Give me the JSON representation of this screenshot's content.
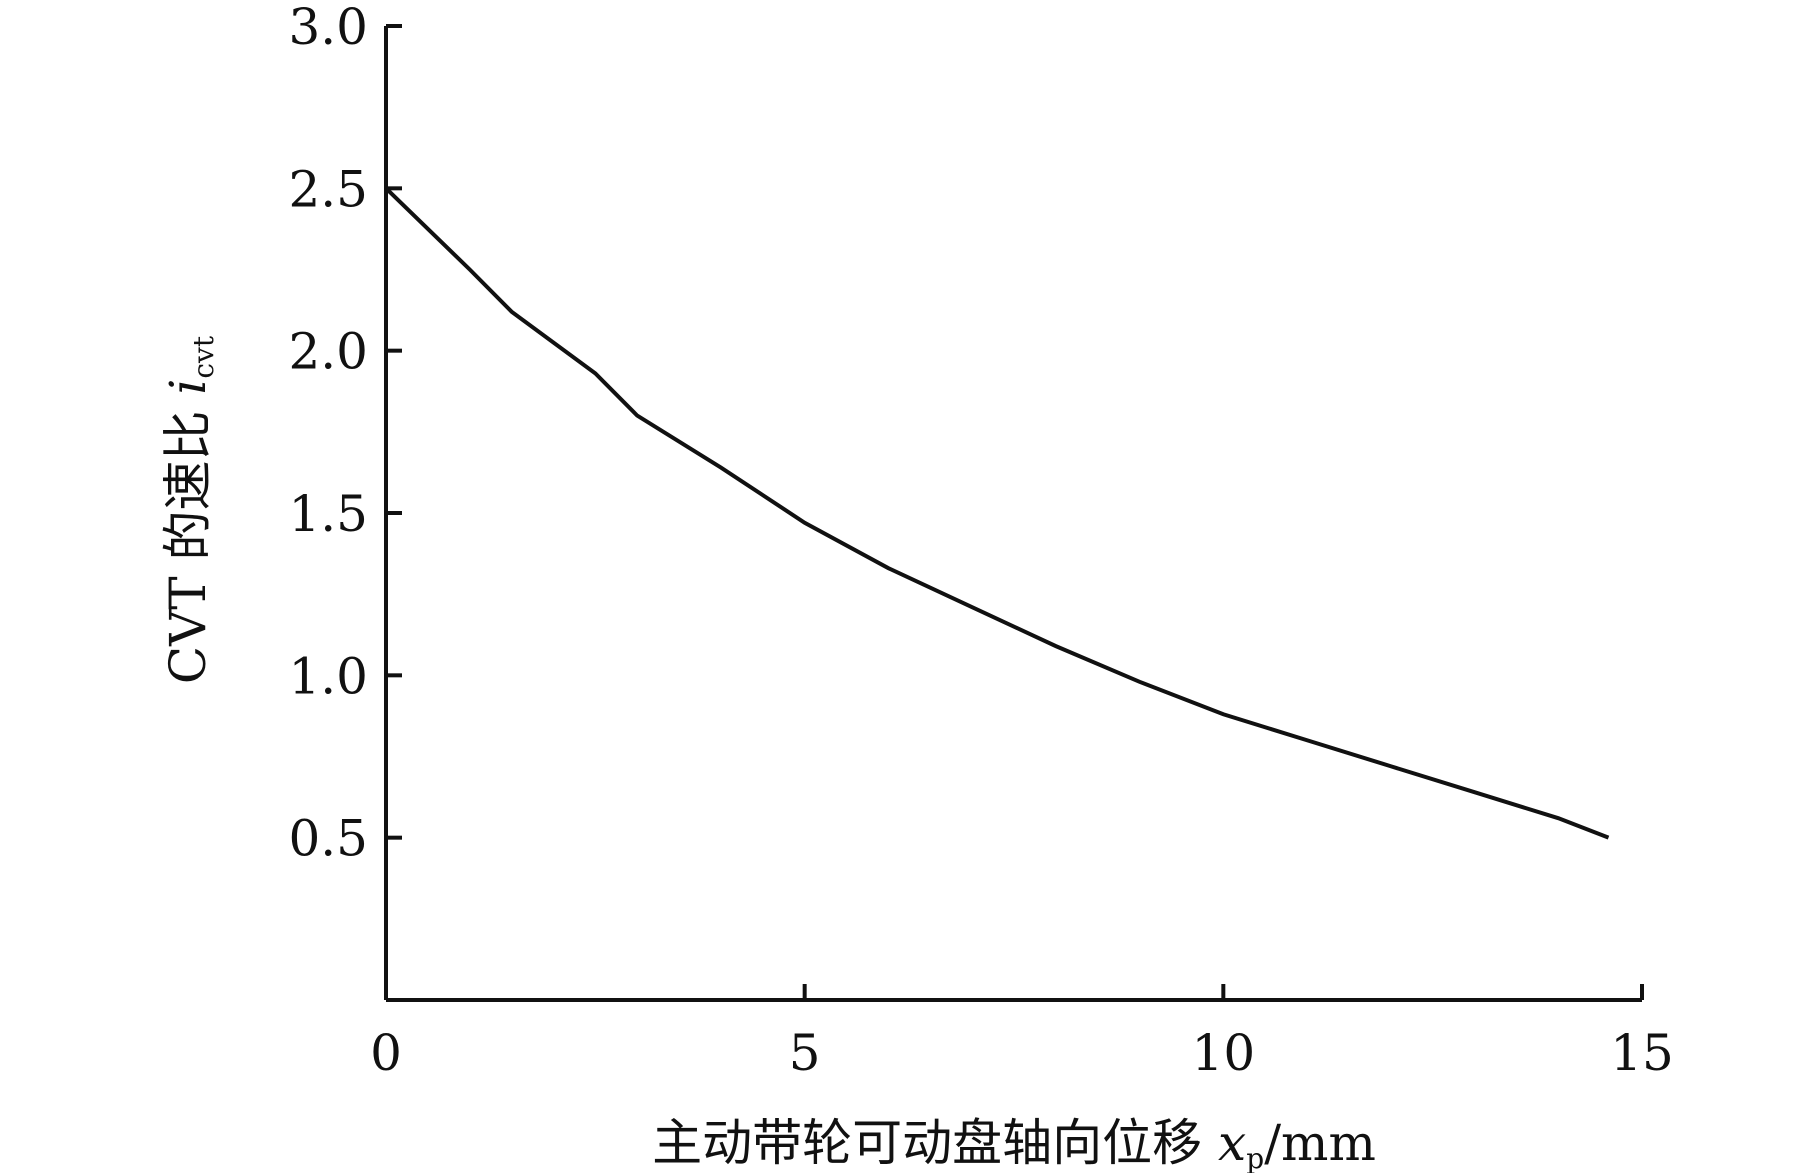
{
  "chart_data": {
    "type": "line",
    "x_label": "主动带轮可动盘轴向位移 ",
    "x_label_var": "x",
    "x_label_sub": "p",
    "x_label_unit": "/mm",
    "y_label": "CVT 的速比 ",
    "y_label_var": "i",
    "y_label_sub": "cvt",
    "x": [
      0,
      1,
      1.5,
      2.5,
      3,
      4,
      5,
      6,
      7,
      8,
      9,
      10,
      11,
      12,
      13,
      14,
      14.6
    ],
    "series": [
      {
        "color": "#111111",
        "values": [
          2.5,
          2.25,
          2.12,
          1.93,
          1.8,
          1.64,
          1.47,
          1.33,
          1.21,
          1.09,
          0.98,
          0.88,
          0.8,
          0.72,
          0.64,
          0.56,
          0.5
        ]
      }
    ],
    "xlim": [
      0,
      15
    ],
    "xticks": [
      0,
      5,
      10,
      15
    ],
    "ylim": [
      0,
      3
    ],
    "yticks": [
      {
        "value": 0.5,
        "label": "0.5"
      },
      {
        "value": 1,
        "label": "1.0"
      },
      {
        "value": 1.5,
        "label": "1.5"
      },
      {
        "value": 2,
        "label": "2.0"
      },
      {
        "value": 2.5,
        "label": "2.5"
      },
      {
        "value": 3,
        "label": "3.0"
      }
    ],
    "grid": false
  }
}
